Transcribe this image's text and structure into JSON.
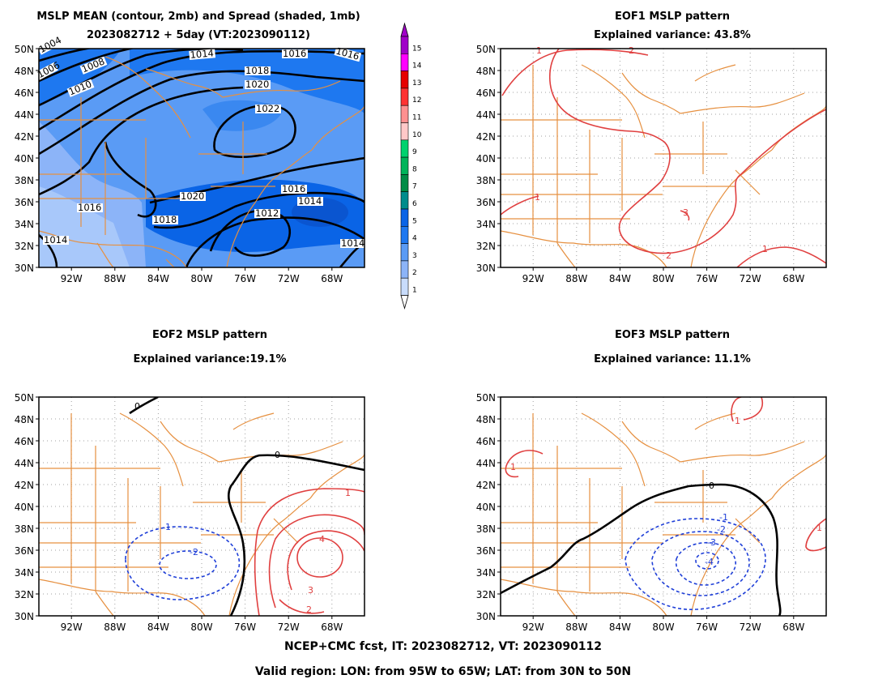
{
  "panels": [
    {
      "id": "mean",
      "title_lines": [
        "MSLP MEAN (contour, 2mb) and Spread (shaded, 1mb)",
        "2023082712 + 5day (VT:2023090112)"
      ],
      "contour_labels": [
        "1004",
        "1006",
        "1008",
        "1010",
        "1014",
        "1016",
        "1018",
        "1020",
        "1022",
        "1016",
        "1020",
        "1018",
        "1016",
        "1014",
        "1012",
        "1014",
        "1014",
        "1016"
      ]
    },
    {
      "id": "eof1",
      "title_lines": [
        "EOF1 MSLP pattern",
        "Explained variance: 43.8%"
      ],
      "contour_labels": [
        "2",
        "1",
        "1",
        "3",
        "2",
        "1"
      ]
    },
    {
      "id": "eof2",
      "title_lines": [
        "EOF2 MSLP pattern",
        "Explained variance:19.1%"
      ],
      "contour_labels": [
        "0",
        "0",
        "1",
        "4",
        "3",
        "2",
        "-1",
        "-2"
      ]
    },
    {
      "id": "eof3",
      "title_lines": [
        "EOF3 MSLP pattern",
        "Explained variance: 11.1%"
      ],
      "contour_labels": [
        "1",
        "1",
        "0",
        "-1",
        "-2",
        "-3",
        "-4",
        "1"
      ]
    }
  ],
  "axes": {
    "lat_labels": [
      "50N",
      "48N",
      "46N",
      "44N",
      "42N",
      "40N",
      "38N",
      "36N",
      "34N",
      "32N",
      "30N"
    ],
    "lon_labels": [
      "92W",
      "88W",
      "84W",
      "80W",
      "76W",
      "72W",
      "68W"
    ],
    "lat_range": [
      30,
      50
    ],
    "lon_range": [
      -95,
      -65
    ]
  },
  "colorbar": {
    "labels": [
      "15",
      "14",
      "13",
      "12",
      "11",
      "10",
      "9",
      "8",
      "7",
      "6",
      "5",
      "4",
      "3",
      "2",
      "1"
    ],
    "colors": [
      "#a000c8",
      "#ff00ff",
      "#e60000",
      "#ff3232",
      "#ff9090",
      "#ffc8c8",
      "#00d26e",
      "#00b45a",
      "#008c46",
      "#008c8c",
      "#0a64e6",
      "#1e78f0",
      "#5a9bf5",
      "#8cb4f8",
      "#c8dcfc"
    ]
  },
  "colors": {
    "map_lines": "#e69040",
    "positive_contour": "#e04040",
    "negative_contour": "#2040d8",
    "zero_contour": "#000000",
    "mean_contour": "#000000"
  },
  "footer": {
    "line1": "NCEP+CMC fcst, IT: 2023082712, VT: 2023090112",
    "line2": "Valid region: LON: from 95W to 65W; LAT: from 30N to 50N"
  }
}
